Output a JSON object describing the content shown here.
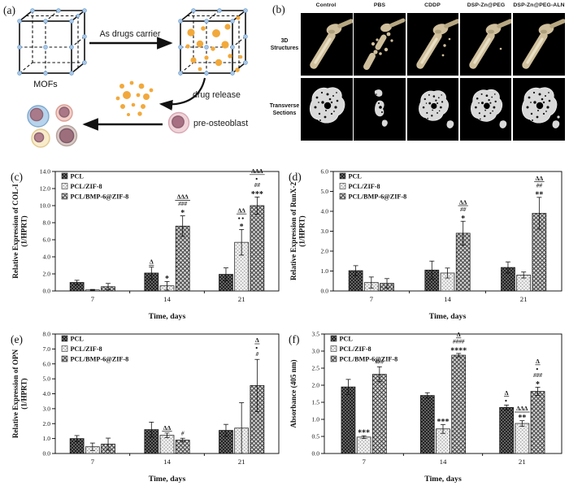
{
  "figure": {
    "panel_a": {
      "label": "(a)",
      "mofs_label": "MOFs",
      "carrier_arrow_label": "As drugs carrier",
      "release_arrow_label": "drug release",
      "cell_label": "pre-osteoblast"
    },
    "panel_b": {
      "label": "(b)",
      "columns": [
        "Control",
        "PBS",
        "CDDP",
        "DSP-Zn@PEG",
        "DSP-Zn@PEG-ALN"
      ],
      "row1": [
        "3D",
        "Structures"
      ],
      "row2": [
        "Transverse",
        "Sections"
      ]
    },
    "colors": {
      "drug_dot_orange": "#f2a93b",
      "mof_node_blue": "#a9c9e8",
      "bone_beige": "#cfbf9c",
      "section_gray": "#d9d9d9",
      "bar_dark": "#222222",
      "bar_light": "#efefef",
      "bar_medium": "#d4d4d4"
    }
  },
  "chart_data": [
    {
      "panel": "(c)",
      "type": "bar",
      "ylabel_lines": [
        "Relative Expression of  COL-I",
        "(1/HPRT)"
      ],
      "xlabel": "Time, days",
      "ylim": [
        0,
        14.0
      ],
      "ytick_step": 2.0,
      "grid": false,
      "legend_position": "top-left",
      "categories": [
        "7",
        "14",
        "21"
      ],
      "series": [
        {
          "name": "PCL",
          "pattern": "dark",
          "values": [
            1.0,
            2.1,
            1.95
          ],
          "errors": [
            0.25,
            0.7,
            0.75
          ],
          "annotations": [
            [],
            [
              "Δ"
            ],
            []
          ]
        },
        {
          "name": "PCL/ZIF-8",
          "pattern": "light",
          "values": [
            0.12,
            0.6,
            5.7
          ],
          "errors": [
            0.06,
            0.5,
            1.5
          ],
          "annotations": [
            [],
            [
              "*"
            ],
            [
              "ΔΔ",
              "●●",
              "*"
            ]
          ]
        },
        {
          "name": "PCL/BMP-6@ZIF-8",
          "pattern": "medium",
          "values": [
            0.5,
            7.6,
            10.0
          ],
          "errors": [
            0.38,
            1.2,
            1.0
          ],
          "annotations": [
            [],
            [
              "ΔΔΔ",
              "###",
              "*"
            ],
            [
              "ΔΔΔ",
              "●",
              "##",
              "***"
            ]
          ]
        }
      ]
    },
    {
      "panel": "(d)",
      "type": "bar",
      "ylabel_lines": [
        "Relative Expression of  RunX-2",
        "(1/HPRT)"
      ],
      "xlabel": "Time, days",
      "ylim": [
        0,
        6.0
      ],
      "ytick_step": 1.0,
      "grid": false,
      "legend_position": "top-left",
      "categories": [
        "7",
        "14",
        "21"
      ],
      "series": [
        {
          "name": "PCL",
          "pattern": "dark",
          "values": [
            1.02,
            1.05,
            1.18
          ],
          "errors": [
            0.25,
            0.45,
            0.28
          ],
          "annotations": [
            [],
            [],
            []
          ]
        },
        {
          "name": "PCL/ZIF-8",
          "pattern": "light",
          "values": [
            0.42,
            0.9,
            0.8
          ],
          "errors": [
            0.28,
            0.25,
            0.15
          ],
          "annotations": [
            [],
            [],
            []
          ]
        },
        {
          "name": "PCL/BMP-6@ZIF-8",
          "pattern": "medium",
          "values": [
            0.38,
            2.9,
            3.9
          ],
          "errors": [
            0.24,
            0.6,
            0.8
          ],
          "annotations": [
            [],
            [
              "ΔΔ",
              "##",
              "*"
            ],
            [
              "ΔΔ",
              "##",
              "**"
            ]
          ]
        }
      ]
    },
    {
      "panel": "(e)",
      "type": "bar",
      "ylabel_lines": [
        "Relative Expression of  OPN",
        "(1/HPRT)"
      ],
      "xlabel": "Time, days",
      "ylim": [
        0,
        8.0
      ],
      "ytick_step": 1.0,
      "grid": false,
      "legend_position": "top-left",
      "categories": [
        "7",
        "14",
        "21"
      ],
      "series": [
        {
          "name": "PCL",
          "pattern": "dark",
          "values": [
            1.0,
            1.6,
            1.55
          ],
          "errors": [
            0.2,
            0.5,
            0.4
          ],
          "annotations": [
            [],
            [],
            []
          ]
        },
        {
          "name": "PCL/ZIF-8",
          "pattern": "light",
          "values": [
            0.45,
            1.22,
            1.7
          ],
          "errors": [
            0.25,
            0.15,
            1.7
          ],
          "annotations": [
            [],
            [
              "ΔΔ"
            ],
            []
          ]
        },
        {
          "name": "PCL/BMP-6@ZIF-8",
          "pattern": "medium",
          "values": [
            0.63,
            0.9,
            4.55
          ],
          "errors": [
            0.4,
            0.12,
            1.75
          ],
          "annotations": [
            [],
            [
              "#"
            ],
            [
              "Δ",
              "●",
              "#"
            ]
          ]
        }
      ]
    },
    {
      "panel": "(f)",
      "type": "bar",
      "ylabel_lines": [
        "Absorbance (405 nm)"
      ],
      "xlabel": "Time, days",
      "ylim": [
        0,
        3.5
      ],
      "ytick_step": 0.5,
      "grid": false,
      "legend_position": "top-left",
      "categories": [
        "7",
        "14",
        "21"
      ],
      "series": [
        {
          "name": "PCL",
          "pattern": "dark",
          "values": [
            1.95,
            1.7,
            1.35
          ],
          "errors": [
            0.22,
            0.08,
            0.07
          ],
          "annotations": [
            [],
            [],
            [
              "Δ",
              "●"
            ]
          ]
        },
        {
          "name": "PCL/ZIF-8",
          "pattern": "light",
          "values": [
            0.48,
            0.72,
            0.88
          ],
          "errors": [
            0.04,
            0.13,
            0.08
          ],
          "annotations": [
            [
              "***"
            ],
            [
              "***"
            ],
            [
              "ΔΔΔ",
              "**"
            ]
          ]
        },
        {
          "name": "PCL/BMP-6@ZIF-8",
          "pattern": "medium",
          "values": [
            2.32,
            2.88,
            1.82
          ],
          "errors": [
            0.22,
            0.05,
            0.12
          ],
          "annotations": [
            [
              "###"
            ],
            [
              "Δ",
              "####",
              "****"
            ],
            [
              "Δ",
              "●",
              "###",
              "*"
            ]
          ]
        }
      ]
    }
  ]
}
